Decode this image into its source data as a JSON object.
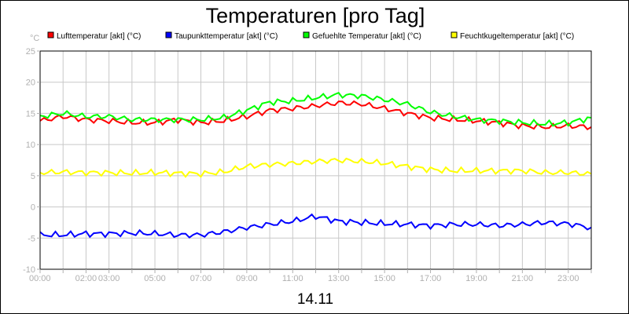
{
  "chart_data": {
    "type": "line",
    "title": "Temperaturen [pro Tag]",
    "xlabel": "14.11",
    "ylabel": "°C",
    "ylim": [
      -10,
      25
    ],
    "yticks": [
      -10,
      -5,
      0,
      5,
      10,
      15,
      20,
      25
    ],
    "xlim": [
      0,
      24
    ],
    "xtick_labels": [
      {
        "hour": 0,
        "label": "00:00"
      },
      {
        "hour": 2,
        "label": "02:00"
      },
      {
        "hour": 3,
        "label": "03:00"
      },
      {
        "hour": 5,
        "label": "05:00"
      },
      {
        "hour": 7,
        "label": "07:00"
      },
      {
        "hour": 9,
        "label": "09:00"
      },
      {
        "hour": 11,
        "label": "11:00"
      },
      {
        "hour": 13,
        "label": "13:00"
      },
      {
        "hour": 15,
        "label": "15:00"
      },
      {
        "hour": 17,
        "label": "17:00"
      },
      {
        "hour": 19,
        "label": "19:00"
      },
      {
        "hour": 21,
        "label": "21:00"
      },
      {
        "hour": 23,
        "label": "23:00"
      }
    ],
    "grid": true,
    "legend_position": "top",
    "x": [
      0,
      1,
      2,
      3,
      4,
      5,
      6,
      7,
      8,
      9,
      10,
      11,
      12,
      13,
      14,
      15,
      16,
      17,
      18,
      19,
      20,
      21,
      22,
      23,
      24
    ],
    "series": [
      {
        "name": "Lufttemperatur [akt] (°C)",
        "color": "#ff0000",
        "values": [
          13.8,
          14.5,
          14.0,
          13.8,
          13.5,
          13.5,
          14.0,
          13.5,
          13.8,
          14.5,
          15.5,
          15.8,
          16.2,
          16.7,
          16.5,
          15.8,
          15.0,
          14.3,
          14.0,
          13.8,
          13.5,
          13.0,
          12.8,
          13.0,
          12.8
        ]
      },
      {
        "name": "Taupunkttemperatur [akt] (°C)",
        "color": "#0000ff",
        "values": [
          -4.5,
          -4.5,
          -4.3,
          -4.3,
          -4.2,
          -4.3,
          -4.5,
          -4.5,
          -4.0,
          -3.3,
          -2.8,
          -2.3,
          -1.5,
          -2.3,
          -2.5,
          -2.7,
          -2.8,
          -3.0,
          -2.8,
          -2.8,
          -3.0,
          -2.8,
          -2.5,
          -2.7,
          -3.3
        ]
      },
      {
        "name": "Gefuehlte Temperatur [akt] (°C)",
        "color": "#00ff00",
        "values": [
          14.5,
          15.0,
          14.5,
          14.5,
          14.0,
          14.0,
          14.0,
          14.0,
          14.3,
          15.5,
          16.8,
          17.0,
          17.5,
          18.0,
          17.8,
          17.2,
          16.5,
          15.2,
          14.5,
          14.0,
          13.8,
          13.5,
          13.3,
          13.5,
          14.3
        ]
      },
      {
        "name": "Feuchtkugeltemperatur [akt] (°C)",
        "color": "#ffff00",
        "values": [
          5.5,
          5.6,
          5.5,
          5.5,
          5.4,
          5.5,
          5.4,
          5.3,
          5.6,
          6.5,
          6.8,
          7.0,
          7.3,
          7.5,
          7.3,
          7.0,
          6.5,
          6.0,
          5.8,
          5.8,
          5.8,
          5.8,
          5.5,
          5.5,
          5.3
        ]
      }
    ]
  }
}
